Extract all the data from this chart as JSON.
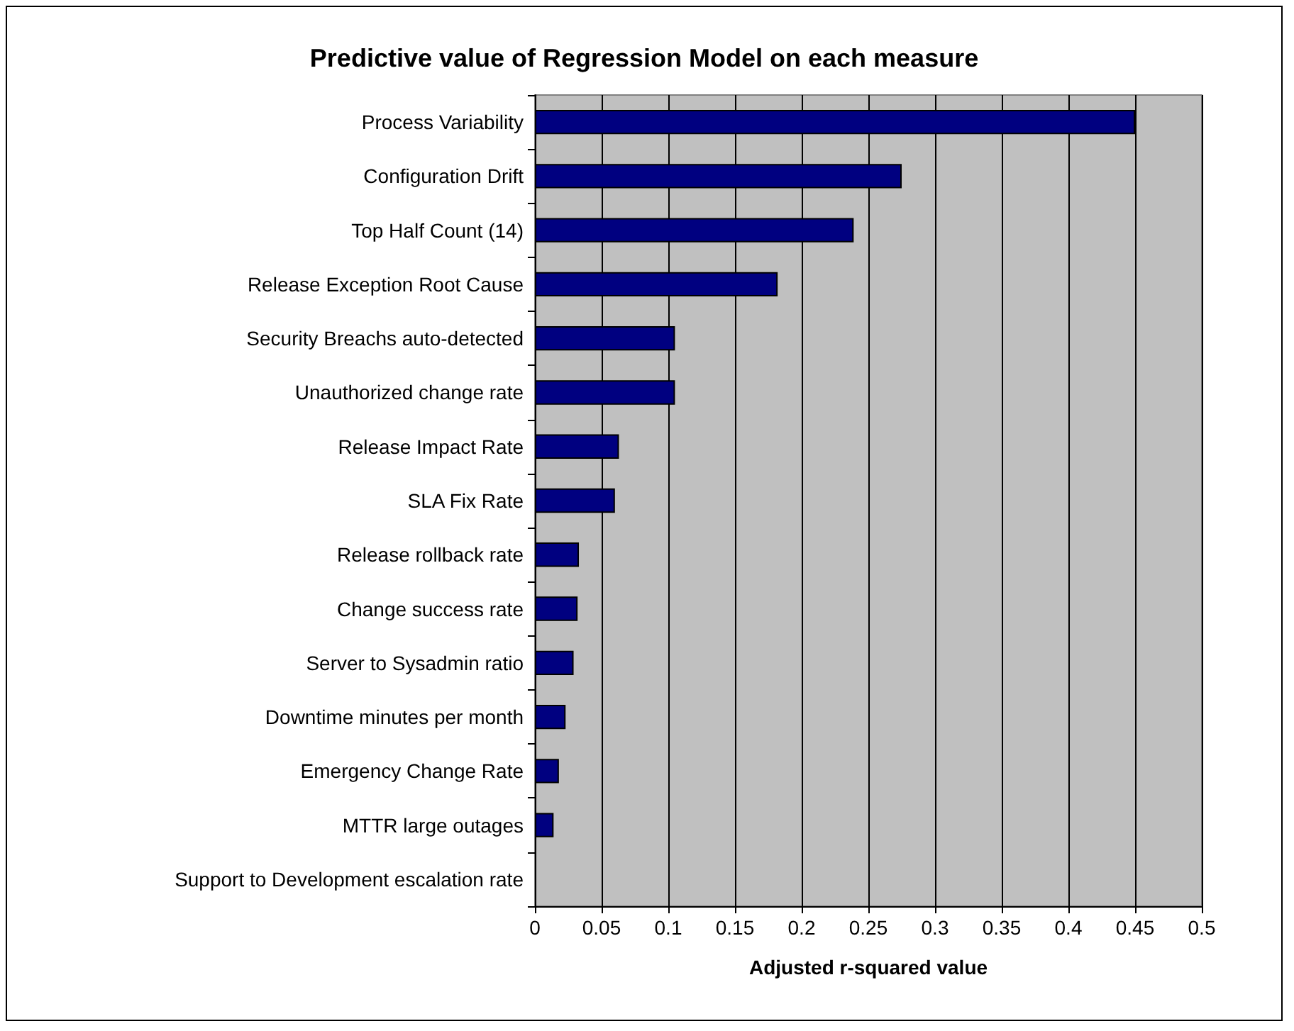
{
  "chart_data": {
    "type": "bar",
    "orientation": "horizontal",
    "title": "Predictive value of Regression Model on each measure",
    "xlabel": "Adjusted r-squared value",
    "categories": [
      "Process Variability",
      "Configuration Drift",
      "Top Half Count (14)",
      "Release Exception Root Cause",
      "Security Breachs auto-detected",
      "Unauthorized change rate",
      "Release Impact Rate",
      "SLA Fix Rate",
      "Release rollback rate",
      "Change success rate",
      "Server to Sysadmin ratio",
      "Downtime minutes per month",
      "Emergency Change Rate",
      "MTTR large outages",
      "Support to Development escalation rate"
    ],
    "values": [
      0.45,
      0.275,
      0.239,
      0.182,
      0.105,
      0.105,
      0.063,
      0.06,
      0.033,
      0.032,
      0.029,
      0.023,
      0.018,
      0.014,
      0
    ],
    "color": "#000080",
    "xlim": [
      0,
      0.5
    ],
    "xticks": [
      0,
      0.05,
      0.1,
      0.15,
      0.2,
      0.25,
      0.3,
      0.35,
      0.4,
      0.45,
      0.5
    ],
    "grid": "x"
  }
}
